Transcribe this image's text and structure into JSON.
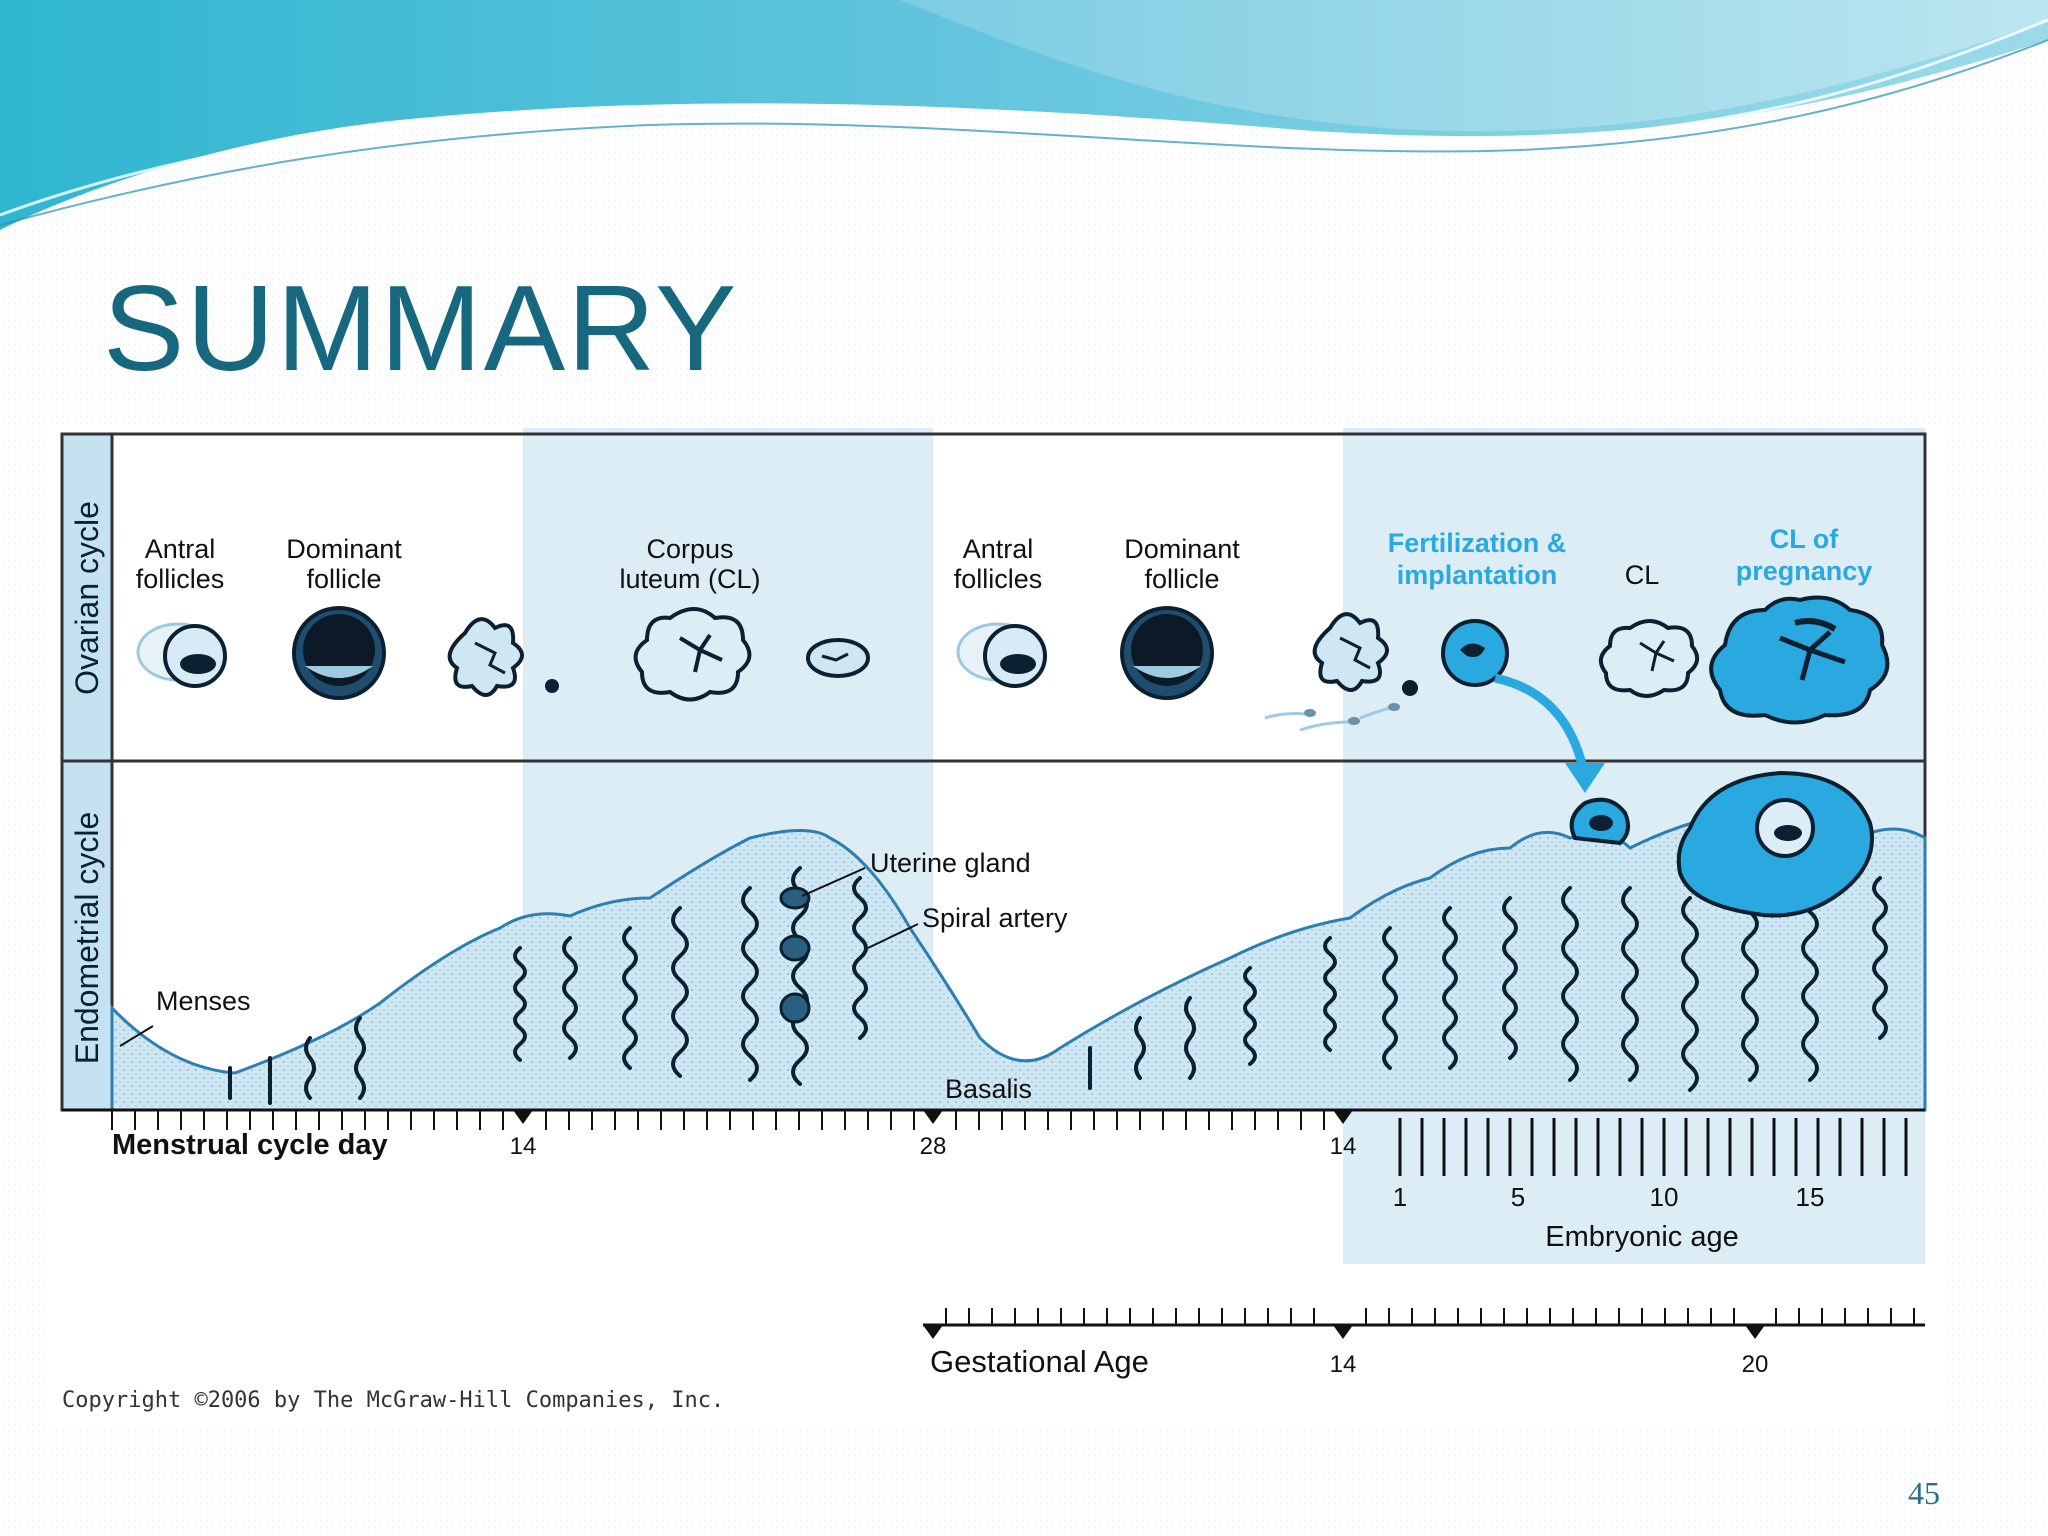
{
  "slide": {
    "title": "SUMMARY",
    "page_number": "45",
    "copyright": "Copyright ©2006 by The McGraw-Hill Companies, Inc."
  },
  "diagram": {
    "row_labels": {
      "ovarian": "Ovarian cycle",
      "endometrial": "Endometrial cycle"
    },
    "ovary_labels": {
      "antral_1": [
        "Antral",
        "follicles"
      ],
      "dominant_1": [
        "Dominant",
        "follicle"
      ],
      "corpus_luteum": [
        "Corpus",
        "luteum (CL)"
      ],
      "antral_2": [
        "Antral",
        "follicles"
      ],
      "dominant_2": [
        "Dominant",
        "follicle"
      ],
      "fertilization": [
        "Fertilization &",
        "implantation"
      ],
      "cl": "CL",
      "cl_pregnancy": [
        "CL of",
        "pregnancy"
      ]
    },
    "endometrium_labels": {
      "menses": "Menses",
      "uterine_gland": "Uterine gland",
      "spiral_artery": "Spiral artery",
      "basalis": "Basalis"
    },
    "axes": {
      "menstrual_label": "Menstrual cycle day",
      "menstrual_ticks": [
        "14",
        "28",
        "14"
      ],
      "embryonic_label": "Embryonic age",
      "embryonic_ticks": [
        "1",
        "5",
        "10",
        "15"
      ],
      "gestational_label": "Gestational Age",
      "gestational_ticks": [
        "14",
        "20"
      ]
    },
    "colors": {
      "light_blue": "#dcedf6",
      "mid_blue": "#5fb7df",
      "accent_blue": "#2aa9e0",
      "dark": "#0b2030"
    }
  }
}
